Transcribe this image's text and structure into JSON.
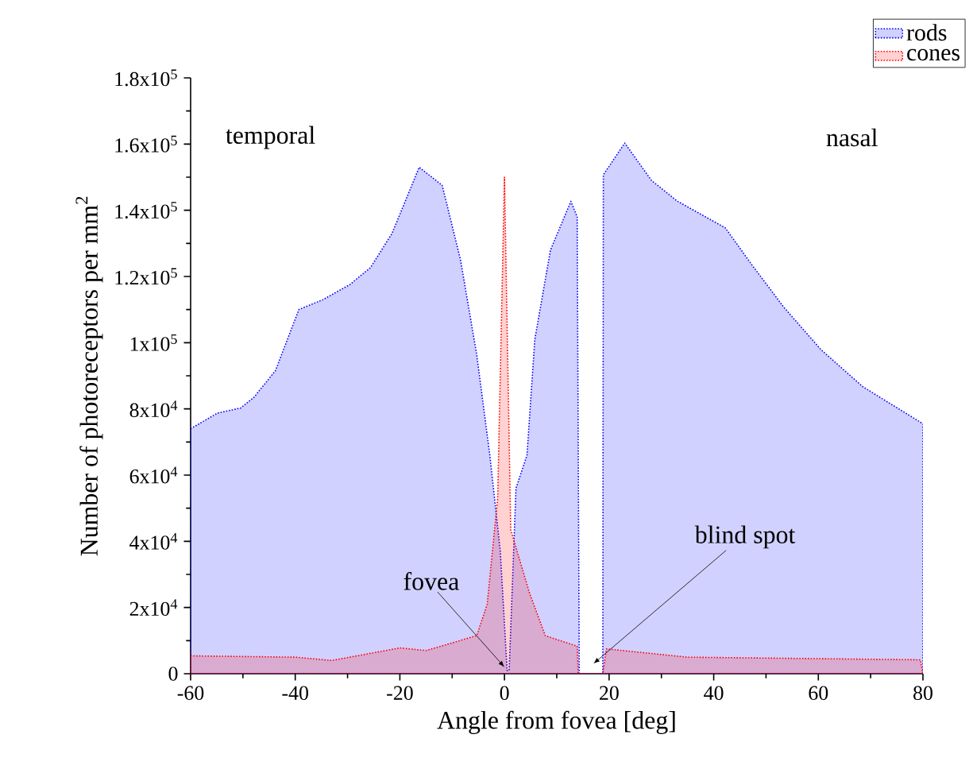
{
  "chart_data": {
    "type": "area",
    "xlabel": "Angle from fovea [deg]",
    "ylabel": "Number of photoreceptors per mm$^{2}$",
    "series": [
      {
        "name": "rods",
        "color": "#0000ff",
        "x": [
          -60,
          -54.9,
          -50.4,
          -47.9,
          -43.8,
          -39.3,
          -34.7,
          -29.6,
          -25.6,
          -21.5,
          -16.3,
          -11.9,
          -8.4,
          -5.3,
          -2.8,
          -0.8,
          0.5,
          0.9,
          2.2,
          4.3,
          5.8,
          8.8,
          12.7,
          13.9,
          14.3,
          18.8,
          18.9,
          23.0,
          28.1,
          33.1,
          42.2,
          47.3,
          53.4,
          60.5,
          68.5,
          80
        ],
        "values": [
          74000,
          78700,
          80300,
          83500,
          91500,
          110000,
          113000,
          117500,
          122700,
          133000,
          153000,
          147500,
          125000,
          96300,
          66000,
          37000,
          1000,
          1000,
          56000,
          66000,
          101000,
          128000,
          142700,
          138000,
          0,
          0,
          150700,
          160300,
          149000,
          142700,
          134700,
          123500,
          110700,
          97900,
          86700,
          75500
        ]
      },
      {
        "name": "cones",
        "color": "#ff0000",
        "x": [
          -60,
          -40,
          -33,
          -20,
          -15,
          -5.3,
          -3.3,
          -1.3,
          0,
          1.2,
          4.8,
          7.8,
          13.9,
          14.1,
          18.8,
          19.5,
          35,
          79.5,
          80
        ],
        "values": [
          5400,
          5000,
          4000,
          7800,
          7000,
          11500,
          21000,
          53000,
          150000,
          43500,
          24300,
          11500,
          8300,
          0,
          0,
          7500,
          5000,
          4200,
          0
        ]
      }
    ],
    "xlim": [
      -60,
      80
    ],
    "xticks": [
      -60,
      -40,
      -20,
      0,
      20,
      40,
      60,
      80
    ],
    "ylim": [
      0,
      180000
    ],
    "yticks": [
      {
        "value": 0,
        "label": "0"
      },
      {
        "value": 20000,
        "label": "2x10$^{4}$"
      },
      {
        "value": 40000,
        "label": "4x10$^{4}$"
      },
      {
        "value": 60000,
        "label": "6x10$^{4}$"
      },
      {
        "value": 80000,
        "label": "8x10$^{4}$"
      },
      {
        "value": 100000,
        "label": "1x10$^{5}$"
      },
      {
        "value": 120000,
        "label": "1.2x10$^{5}$"
      },
      {
        "value": 140000,
        "label": "1.4x10$^{5}$"
      },
      {
        "value": 160000,
        "label": "1.6x10$^{5}$"
      },
      {
        "value": 180000,
        "label": "1.8x10$^{5}$"
      }
    ],
    "annotations": [
      "temporal",
      "nasal",
      {
        "text": "fovea",
        "x": 0,
        "y": 2000
      },
      {
        "text": "blind spot",
        "x": 17,
        "y": 3000
      }
    ],
    "legend": "top right",
    "line_style": "dotted",
    "grid": false
  }
}
